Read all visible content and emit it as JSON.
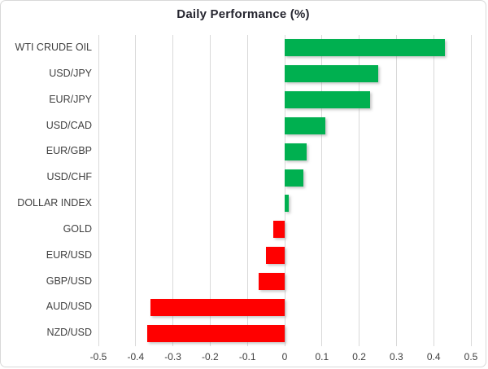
{
  "chart_data": {
    "type": "bar",
    "orientation": "horizontal",
    "title": "Daily Performance (%)",
    "categories": [
      "WTI CRUDE OIL",
      "USD/JPY",
      "EUR/JPY",
      "USD/CAD",
      "EUR/GBP",
      "USD/CHF",
      "DOLLAR INDEX",
      "GOLD",
      "EUR/USD",
      "GBP/USD",
      "AUD/USD",
      "NZD/USD"
    ],
    "values": [
      0.43,
      0.25,
      0.23,
      0.11,
      0.06,
      0.05,
      0.01,
      -0.03,
      -0.05,
      -0.07,
      -0.36,
      -0.37
    ],
    "xlim": [
      -0.5,
      0.5
    ],
    "xticks": [
      -0.5,
      -0.4,
      -0.3,
      -0.2,
      -0.1,
      0,
      0.1,
      0.2,
      0.3,
      0.4,
      0.5
    ],
    "xtick_labels": [
      "-0.5",
      "-0.4",
      "-0.3",
      "-0.2",
      "-0.1",
      "0",
      "0.1",
      "0.2",
      "0.3",
      "0.4",
      "0.5"
    ],
    "grid": true,
    "legend": false,
    "colors": {
      "positive": "#00b050",
      "negative": "#ff0000",
      "gridline": "#d9d9d9",
      "title": "#262630",
      "category_label": "#404040",
      "tick_label": "#404040",
      "frame_border": "#d9d9d9",
      "background": "#ffffff"
    }
  }
}
